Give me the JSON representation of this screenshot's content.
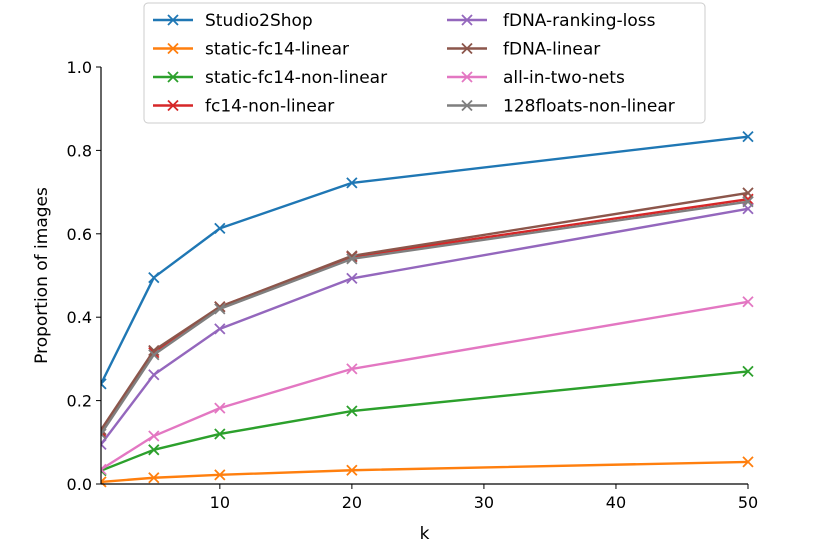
{
  "chart_data": {
    "type": "line",
    "title": "",
    "xlabel": "k",
    "ylabel": "Proportion of images",
    "xlim": [
      1,
      50
    ],
    "ylim": [
      0,
      1
    ],
    "xticks": [
      10,
      20,
      30,
      40,
      50
    ],
    "xtick_labels": [
      "10",
      "20",
      "30",
      "40",
      "50"
    ],
    "yticks": [
      0.0,
      0.2,
      0.4,
      0.6,
      0.8,
      1.0
    ],
    "ytick_labels": [
      "0.0",
      "0.2",
      "0.4",
      "0.6",
      "0.8",
      "1.0"
    ],
    "grid": false,
    "legend_position": "top-center",
    "x": [
      1,
      5,
      10,
      20,
      50
    ],
    "series": [
      {
        "name": "Studio2Shop",
        "color": "#1f77b4",
        "values": [
          0.24,
          0.495,
          0.613,
          0.722,
          0.833
        ]
      },
      {
        "name": "static-fc14-linear",
        "color": "#ff7f0e",
        "values": [
          0.005,
          0.015,
          0.022,
          0.033,
          0.053
        ]
      },
      {
        "name": "static-fc14-non-linear",
        "color": "#2ca02c",
        "values": [
          0.032,
          0.082,
          0.12,
          0.175,
          0.27
        ]
      },
      {
        "name": "fc14-non-linear",
        "color": "#d62728",
        "values": [
          0.125,
          0.315,
          0.425,
          0.545,
          0.683
        ]
      },
      {
        "name": "fDNA-ranking-loss",
        "color": "#9467bd",
        "values": [
          0.095,
          0.262,
          0.372,
          0.493,
          0.66
        ]
      },
      {
        "name": "fDNA-linear",
        "color": "#8c564b",
        "values": [
          0.13,
          0.32,
          0.425,
          0.547,
          0.698
        ]
      },
      {
        "name": "all-in-two-nets",
        "color": "#e377c2",
        "values": [
          0.035,
          0.115,
          0.182,
          0.276,
          0.437
        ]
      },
      {
        "name": "128floats-non-linear",
        "color": "#7f7f7f",
        "values": [
          0.12,
          0.31,
          0.42,
          0.54,
          0.677
        ]
      }
    ]
  }
}
